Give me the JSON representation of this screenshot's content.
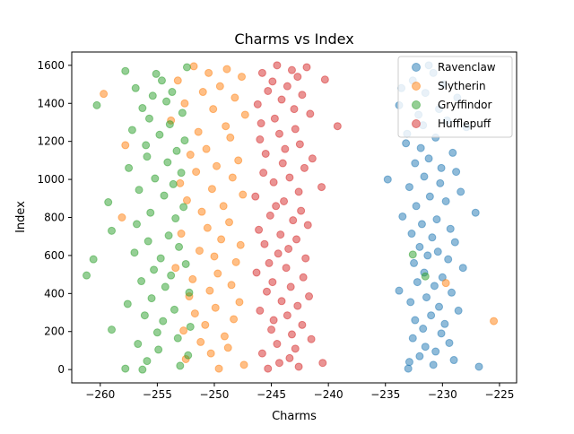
{
  "chart_data": {
    "type": "scatter",
    "title": "Charms vs Index",
    "xlabel": "Charms",
    "ylabel": "Index",
    "xlim": [
      -262.5,
      -223.5
    ],
    "ylim": [
      -70,
      1670
    ],
    "xticks": [
      -260,
      -255,
      -250,
      -245,
      -240,
      -235,
      -230,
      -225
    ],
    "xtick_labels": [
      "−260",
      "−255",
      "−250",
      "−245",
      "−240",
      "−235",
      "−230",
      "−225"
    ],
    "yticks": [
      0,
      200,
      400,
      600,
      800,
      1000,
      1200,
      1400,
      1600
    ],
    "ytick_labels": [
      "0",
      "200",
      "400",
      "600",
      "800",
      "1000",
      "1200",
      "1400",
      "1600"
    ],
    "grid": false,
    "legend_position": "upper right",
    "marker_opacity": 0.5,
    "series": [
      {
        "name": "Ravenclaw",
        "color": "#1f77b4",
        "points": [
          {
            "x": -231.2,
            "y": 1600
          },
          {
            "x": -230.8,
            "y": 1560
          },
          {
            "x": -232.6,
            "y": 1520
          },
          {
            "x": -229.9,
            "y": 1500
          },
          {
            "x": -233.6,
            "y": 1480
          },
          {
            "x": -231.5,
            "y": 1455
          },
          {
            "x": -228.7,
            "y": 1430
          },
          {
            "x": -233.8,
            "y": 1390
          },
          {
            "x": -230.3,
            "y": 1370
          },
          {
            "x": -232.1,
            "y": 1340
          },
          {
            "x": -229.6,
            "y": 1310
          },
          {
            "x": -231.7,
            "y": 1285
          },
          {
            "x": -227.9,
            "y": 1275
          },
          {
            "x": -233.1,
            "y": 1240
          },
          {
            "x": -230.6,
            "y": 1220
          },
          {
            "x": -233.2,
            "y": 1190
          },
          {
            "x": -231.9,
            "y": 1165
          },
          {
            "x": -229.1,
            "y": 1140
          },
          {
            "x": -231.2,
            "y": 1110
          },
          {
            "x": -232.4,
            "y": 1085
          },
          {
            "x": -230.1,
            "y": 1060
          },
          {
            "x": -228.8,
            "y": 1040
          },
          {
            "x": -231.6,
            "y": 1015
          },
          {
            "x": -234.8,
            "y": 1000
          },
          {
            "x": -230.2,
            "y": 980
          },
          {
            "x": -232.9,
            "y": 960
          },
          {
            "x": -228.4,
            "y": 935
          },
          {
            "x": -231.1,
            "y": 910
          },
          {
            "x": -229.7,
            "y": 885
          },
          {
            "x": -232.3,
            "y": 860
          },
          {
            "x": -227.1,
            "y": 825
          },
          {
            "x": -233.5,
            "y": 805
          },
          {
            "x": -230.5,
            "y": 790
          },
          {
            "x": -231.8,
            "y": 765
          },
          {
            "x": -229.3,
            "y": 740
          },
          {
            "x": -232.7,
            "y": 715
          },
          {
            "x": -230.9,
            "y": 695
          },
          {
            "x": -228.9,
            "y": 670
          },
          {
            "x": -232.0,
            "y": 645
          },
          {
            "x": -230.4,
            "y": 620
          },
          {
            "x": -231.3,
            "y": 600
          },
          {
            "x": -229.5,
            "y": 580
          },
          {
            "x": -232.5,
            "y": 560
          },
          {
            "x": -228.2,
            "y": 535
          },
          {
            "x": -231.6,
            "y": 510
          },
          {
            "x": -230.0,
            "y": 485
          },
          {
            "x": -232.2,
            "y": 460
          },
          {
            "x": -233.8,
            "y": 415
          },
          {
            "x": -230.7,
            "y": 440
          },
          {
            "x": -229.2,
            "y": 405
          },
          {
            "x": -231.4,
            "y": 380
          },
          {
            "x": -232.8,
            "y": 355
          },
          {
            "x": -230.3,
            "y": 330
          },
          {
            "x": -228.6,
            "y": 310
          },
          {
            "x": -231.0,
            "y": 285
          },
          {
            "x": -232.4,
            "y": 260
          },
          {
            "x": -229.8,
            "y": 240
          },
          {
            "x": -231.7,
            "y": 215
          },
          {
            "x": -230.1,
            "y": 190
          },
          {
            "x": -232.6,
            "y": 165
          },
          {
            "x": -229.4,
            "y": 140
          },
          {
            "x": -231.5,
            "y": 120
          },
          {
            "x": -230.6,
            "y": 95
          },
          {
            "x": -232.0,
            "y": 70
          },
          {
            "x": -229.0,
            "y": 50
          },
          {
            "x": -232.9,
            "y": 40
          },
          {
            "x": -230.8,
            "y": 25
          },
          {
            "x": -226.8,
            "y": 15
          },
          {
            "x": -233.0,
            "y": 5
          }
        ]
      },
      {
        "name": "Slytherin",
        "color": "#ff7f0e",
        "points": [
          {
            "x": -251.8,
            "y": 1595
          },
          {
            "x": -248.9,
            "y": 1580
          },
          {
            "x": -250.5,
            "y": 1560
          },
          {
            "x": -247.6,
            "y": 1540
          },
          {
            "x": -253.2,
            "y": 1520
          },
          {
            "x": -249.5,
            "y": 1490
          },
          {
            "x": -251.0,
            "y": 1460
          },
          {
            "x": -259.7,
            "y": 1450
          },
          {
            "x": -248.2,
            "y": 1430
          },
          {
            "x": -252.6,
            "y": 1400
          },
          {
            "x": -250.1,
            "y": 1370
          },
          {
            "x": -247.3,
            "y": 1340
          },
          {
            "x": -253.8,
            "y": 1310
          },
          {
            "x": -249.0,
            "y": 1280
          },
          {
            "x": -251.4,
            "y": 1250
          },
          {
            "x": -248.6,
            "y": 1220
          },
          {
            "x": -257.8,
            "y": 1180
          },
          {
            "x": -250.7,
            "y": 1160
          },
          {
            "x": -252.1,
            "y": 1130
          },
          {
            "x": -247.9,
            "y": 1100
          },
          {
            "x": -249.8,
            "y": 1070
          },
          {
            "x": -251.6,
            "y": 1040
          },
          {
            "x": -248.4,
            "y": 1010
          },
          {
            "x": -253.0,
            "y": 980
          },
          {
            "x": -250.2,
            "y": 950
          },
          {
            "x": -247.5,
            "y": 920
          },
          {
            "x": -252.4,
            "y": 890
          },
          {
            "x": -249.2,
            "y": 860
          },
          {
            "x": -251.1,
            "y": 830
          },
          {
            "x": -258.1,
            "y": 800
          },
          {
            "x": -248.7,
            "y": 775
          },
          {
            "x": -250.6,
            "y": 745
          },
          {
            "x": -252.9,
            "y": 715
          },
          {
            "x": -249.4,
            "y": 685
          },
          {
            "x": -247.7,
            "y": 655
          },
          {
            "x": -251.3,
            "y": 625
          },
          {
            "x": -250.0,
            "y": 595
          },
          {
            "x": -248.1,
            "y": 565
          },
          {
            "x": -253.4,
            "y": 535
          },
          {
            "x": -249.7,
            "y": 505
          },
          {
            "x": -251.9,
            "y": 475
          },
          {
            "x": -248.5,
            "y": 445
          },
          {
            "x": -229.7,
            "y": 455
          },
          {
            "x": -250.4,
            "y": 415
          },
          {
            "x": -252.2,
            "y": 385
          },
          {
            "x": -247.8,
            "y": 355
          },
          {
            "x": -249.9,
            "y": 325
          },
          {
            "x": -251.7,
            "y": 295
          },
          {
            "x": -248.3,
            "y": 265
          },
          {
            "x": -225.5,
            "y": 255
          },
          {
            "x": -250.8,
            "y": 235
          },
          {
            "x": -252.7,
            "y": 205
          },
          {
            "x": -249.1,
            "y": 175
          },
          {
            "x": -251.2,
            "y": 145
          },
          {
            "x": -248.8,
            "y": 115
          },
          {
            "x": -250.3,
            "y": 85
          },
          {
            "x": -252.5,
            "y": 55
          },
          {
            "x": -247.4,
            "y": 25
          },
          {
            "x": -249.6,
            "y": 5
          }
        ]
      },
      {
        "name": "Gryffindor",
        "color": "#2ca02c",
        "points": [
          {
            "x": -257.8,
            "y": 1570
          },
          {
            "x": -255.1,
            "y": 1555
          },
          {
            "x": -252.4,
            "y": 1590
          },
          {
            "x": -254.6,
            "y": 1520
          },
          {
            "x": -256.9,
            "y": 1480
          },
          {
            "x": -253.7,
            "y": 1460
          },
          {
            "x": -255.4,
            "y": 1440
          },
          {
            "x": -260.3,
            "y": 1390
          },
          {
            "x": -254.2,
            "y": 1410
          },
          {
            "x": -256.3,
            "y": 1375
          },
          {
            "x": -252.8,
            "y": 1350
          },
          {
            "x": -255.7,
            "y": 1320
          },
          {
            "x": -253.9,
            "y": 1290
          },
          {
            "x": -257.2,
            "y": 1260
          },
          {
            "x": -254.8,
            "y": 1235
          },
          {
            "x": -252.6,
            "y": 1205
          },
          {
            "x": -256.0,
            "y": 1180
          },
          {
            "x": -253.3,
            "y": 1150
          },
          {
            "x": -255.9,
            "y": 1120
          },
          {
            "x": -254.1,
            "y": 1090
          },
          {
            "x": -257.5,
            "y": 1060
          },
          {
            "x": -252.9,
            "y": 1035
          },
          {
            "x": -255.2,
            "y": 1005
          },
          {
            "x": -253.6,
            "y": 975
          },
          {
            "x": -256.6,
            "y": 945
          },
          {
            "x": -254.4,
            "y": 915
          },
          {
            "x": -259.3,
            "y": 880
          },
          {
            "x": -252.7,
            "y": 855
          },
          {
            "x": -255.6,
            "y": 825
          },
          {
            "x": -253.4,
            "y": 795
          },
          {
            "x": -256.8,
            "y": 765
          },
          {
            "x": -259.0,
            "y": 730
          },
          {
            "x": -254.0,
            "y": 705
          },
          {
            "x": -255.8,
            "y": 675
          },
          {
            "x": -253.1,
            "y": 645
          },
          {
            "x": -257.0,
            "y": 615
          },
          {
            "x": -254.7,
            "y": 585
          },
          {
            "x": -260.6,
            "y": 580
          },
          {
            "x": -252.5,
            "y": 555
          },
          {
            "x": -255.3,
            "y": 525
          },
          {
            "x": -261.2,
            "y": 495
          },
          {
            "x": -253.8,
            "y": 495
          },
          {
            "x": -256.4,
            "y": 465
          },
          {
            "x": -254.3,
            "y": 435
          },
          {
            "x": -252.2,
            "y": 405
          },
          {
            "x": -255.5,
            "y": 375
          },
          {
            "x": -257.6,
            "y": 345
          },
          {
            "x": -253.5,
            "y": 315
          },
          {
            "x": -256.1,
            "y": 285
          },
          {
            "x": -254.5,
            "y": 255
          },
          {
            "x": -252.1,
            "y": 225
          },
          {
            "x": -259.0,
            "y": 210
          },
          {
            "x": -255.0,
            "y": 195
          },
          {
            "x": -253.2,
            "y": 165
          },
          {
            "x": -256.7,
            "y": 135
          },
          {
            "x": -254.9,
            "y": 105
          },
          {
            "x": -252.3,
            "y": 75
          },
          {
            "x": -255.9,
            "y": 45
          },
          {
            "x": -253.0,
            "y": 20
          },
          {
            "x": -257.8,
            "y": 5
          },
          {
            "x": -256.3,
            "y": 0
          },
          {
            "x": -231.5,
            "y": 490
          },
          {
            "x": -232.6,
            "y": 605
          }
        ]
      },
      {
        "name": "Hufflepuff",
        "color": "#d62728",
        "points": [
          {
            "x": -244.5,
            "y": 1600
          },
          {
            "x": -243.2,
            "y": 1575
          },
          {
            "x": -241.9,
            "y": 1590
          },
          {
            "x": -245.8,
            "y": 1560
          },
          {
            "x": -242.7,
            "y": 1540
          },
          {
            "x": -244.9,
            "y": 1515
          },
          {
            "x": -240.3,
            "y": 1525
          },
          {
            "x": -243.6,
            "y": 1490
          },
          {
            "x": -245.3,
            "y": 1465
          },
          {
            "x": -242.3,
            "y": 1445
          },
          {
            "x": -244.1,
            "y": 1420
          },
          {
            "x": -246.2,
            "y": 1395
          },
          {
            "x": -243.0,
            "y": 1370
          },
          {
            "x": -241.6,
            "y": 1345
          },
          {
            "x": -244.7,
            "y": 1320
          },
          {
            "x": -245.9,
            "y": 1295
          },
          {
            "x": -239.2,
            "y": 1280
          },
          {
            "x": -242.9,
            "y": 1265
          },
          {
            "x": -244.3,
            "y": 1240
          },
          {
            "x": -246.0,
            "y": 1210
          },
          {
            "x": -242.5,
            "y": 1185
          },
          {
            "x": -243.8,
            "y": 1160
          },
          {
            "x": -245.5,
            "y": 1135
          },
          {
            "x": -241.4,
            "y": 1110
          },
          {
            "x": -244.0,
            "y": 1085
          },
          {
            "x": -242.1,
            "y": 1060
          },
          {
            "x": -245.7,
            "y": 1035
          },
          {
            "x": -243.4,
            "y": 1010
          },
          {
            "x": -244.8,
            "y": 985
          },
          {
            "x": -240.6,
            "y": 960
          },
          {
            "x": -242.6,
            "y": 935
          },
          {
            "x": -246.4,
            "y": 910
          },
          {
            "x": -243.9,
            "y": 885
          },
          {
            "x": -244.6,
            "y": 860
          },
          {
            "x": -242.4,
            "y": 835
          },
          {
            "x": -245.1,
            "y": 810
          },
          {
            "x": -243.1,
            "y": 785
          },
          {
            "x": -241.8,
            "y": 760
          },
          {
            "x": -246.1,
            "y": 735
          },
          {
            "x": -244.2,
            "y": 710
          },
          {
            "x": -242.8,
            "y": 685
          },
          {
            "x": -245.6,
            "y": 660
          },
          {
            "x": -243.5,
            "y": 635
          },
          {
            "x": -244.4,
            "y": 610
          },
          {
            "x": -242.0,
            "y": 585
          },
          {
            "x": -245.2,
            "y": 560
          },
          {
            "x": -243.7,
            "y": 535
          },
          {
            "x": -246.3,
            "y": 510
          },
          {
            "x": -242.2,
            "y": 485
          },
          {
            "x": -244.9,
            "y": 460
          },
          {
            "x": -243.3,
            "y": 435
          },
          {
            "x": -245.4,
            "y": 410
          },
          {
            "x": -241.7,
            "y": 385
          },
          {
            "x": -244.1,
            "y": 360
          },
          {
            "x": -242.7,
            "y": 335
          },
          {
            "x": -246.0,
            "y": 310
          },
          {
            "x": -243.6,
            "y": 285
          },
          {
            "x": -244.8,
            "y": 260
          },
          {
            "x": -242.3,
            "y": 235
          },
          {
            "x": -245.0,
            "y": 210
          },
          {
            "x": -243.2,
            "y": 185
          },
          {
            "x": -241.5,
            "y": 160
          },
          {
            "x": -244.5,
            "y": 135
          },
          {
            "x": -242.9,
            "y": 110
          },
          {
            "x": -245.8,
            "y": 85
          },
          {
            "x": -243.4,
            "y": 60
          },
          {
            "x": -244.3,
            "y": 35
          },
          {
            "x": -240.5,
            "y": 35
          },
          {
            "x": -242.6,
            "y": 15
          },
          {
            "x": -245.3,
            "y": 5
          }
        ]
      }
    ]
  }
}
